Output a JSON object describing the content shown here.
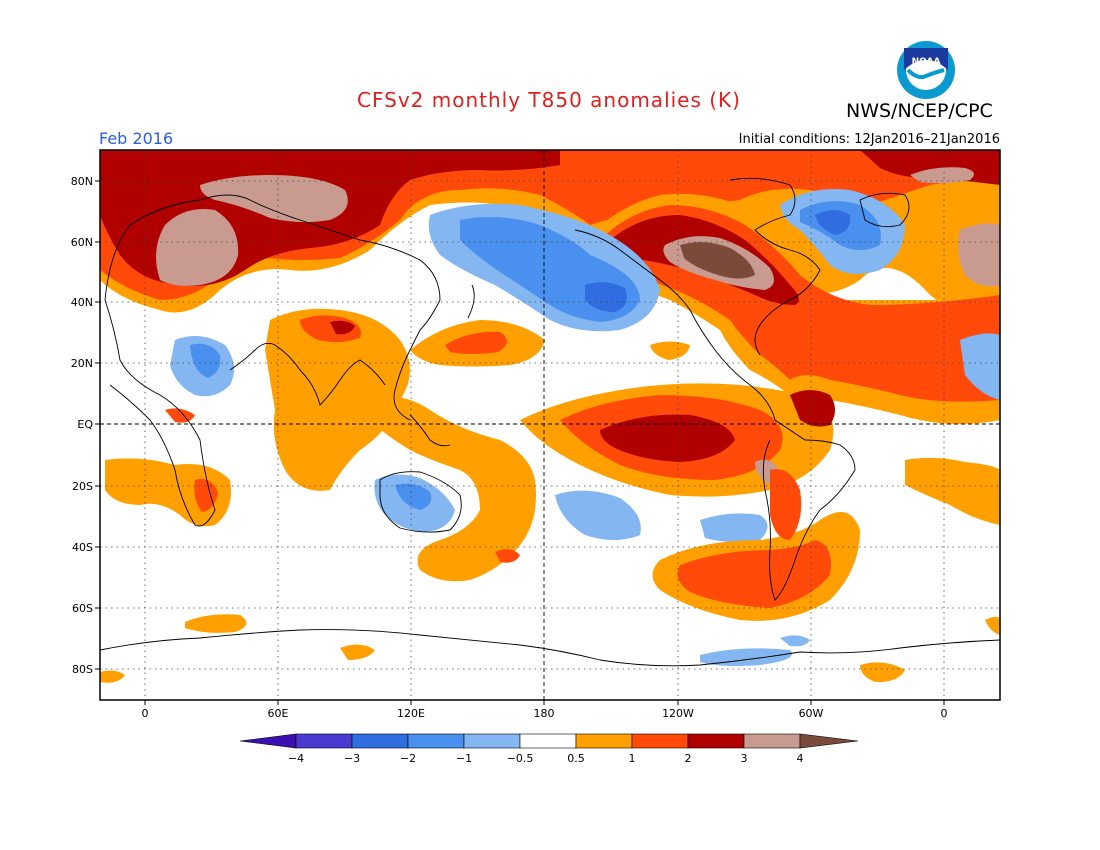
{
  "title": "CFSv2 monthly T850 anomalies (K)",
  "organization": "NWS/NCEP/CPC",
  "logo_text": "NOAA",
  "month": "Feb 2016",
  "initial_conditions": "Initial conditions: 12Jan2016–21Jan2016",
  "map": {
    "lat_labels": [
      "80N",
      "60N",
      "40N",
      "20N",
      "EQ",
      "20S",
      "40S",
      "60S",
      "80S"
    ],
    "lon_labels": [
      "0",
      "60E",
      "120E",
      "180",
      "120W",
      "60W",
      "0"
    ],
    "lat_values": [
      80,
      60,
      40,
      20,
      0,
      -20,
      -40,
      -60,
      -80
    ],
    "lon_values": [
      0,
      60,
      120,
      180,
      240,
      300,
      360
    ],
    "lon_range": [
      -20,
      385
    ],
    "lat_range": [
      -90,
      90
    ],
    "grid": true
  },
  "colorbar": {
    "labels": [
      "−4",
      "−3",
      "−2",
      "−1",
      "−0.5",
      "0.5",
      "1",
      "2",
      "3",
      "4"
    ],
    "colors": [
      "#3a10b0",
      "#4a3ad0",
      "#2f6de0",
      "#4a90ee",
      "#84b6f2",
      "#ffffff",
      "#ffa000",
      "#ff4a0a",
      "#b00000",
      "#c89a90",
      "#7a4a3a"
    ]
  },
  "palette": {
    "blue_light": "#84b6f2",
    "blue_mid": "#4a90ee",
    "blue_dark": "#2f6de0",
    "orange": "#ffa000",
    "red": "#ff4a0a",
    "darkred": "#b00000",
    "tan": "#c89a90",
    "brown": "#7a4a3a"
  }
}
